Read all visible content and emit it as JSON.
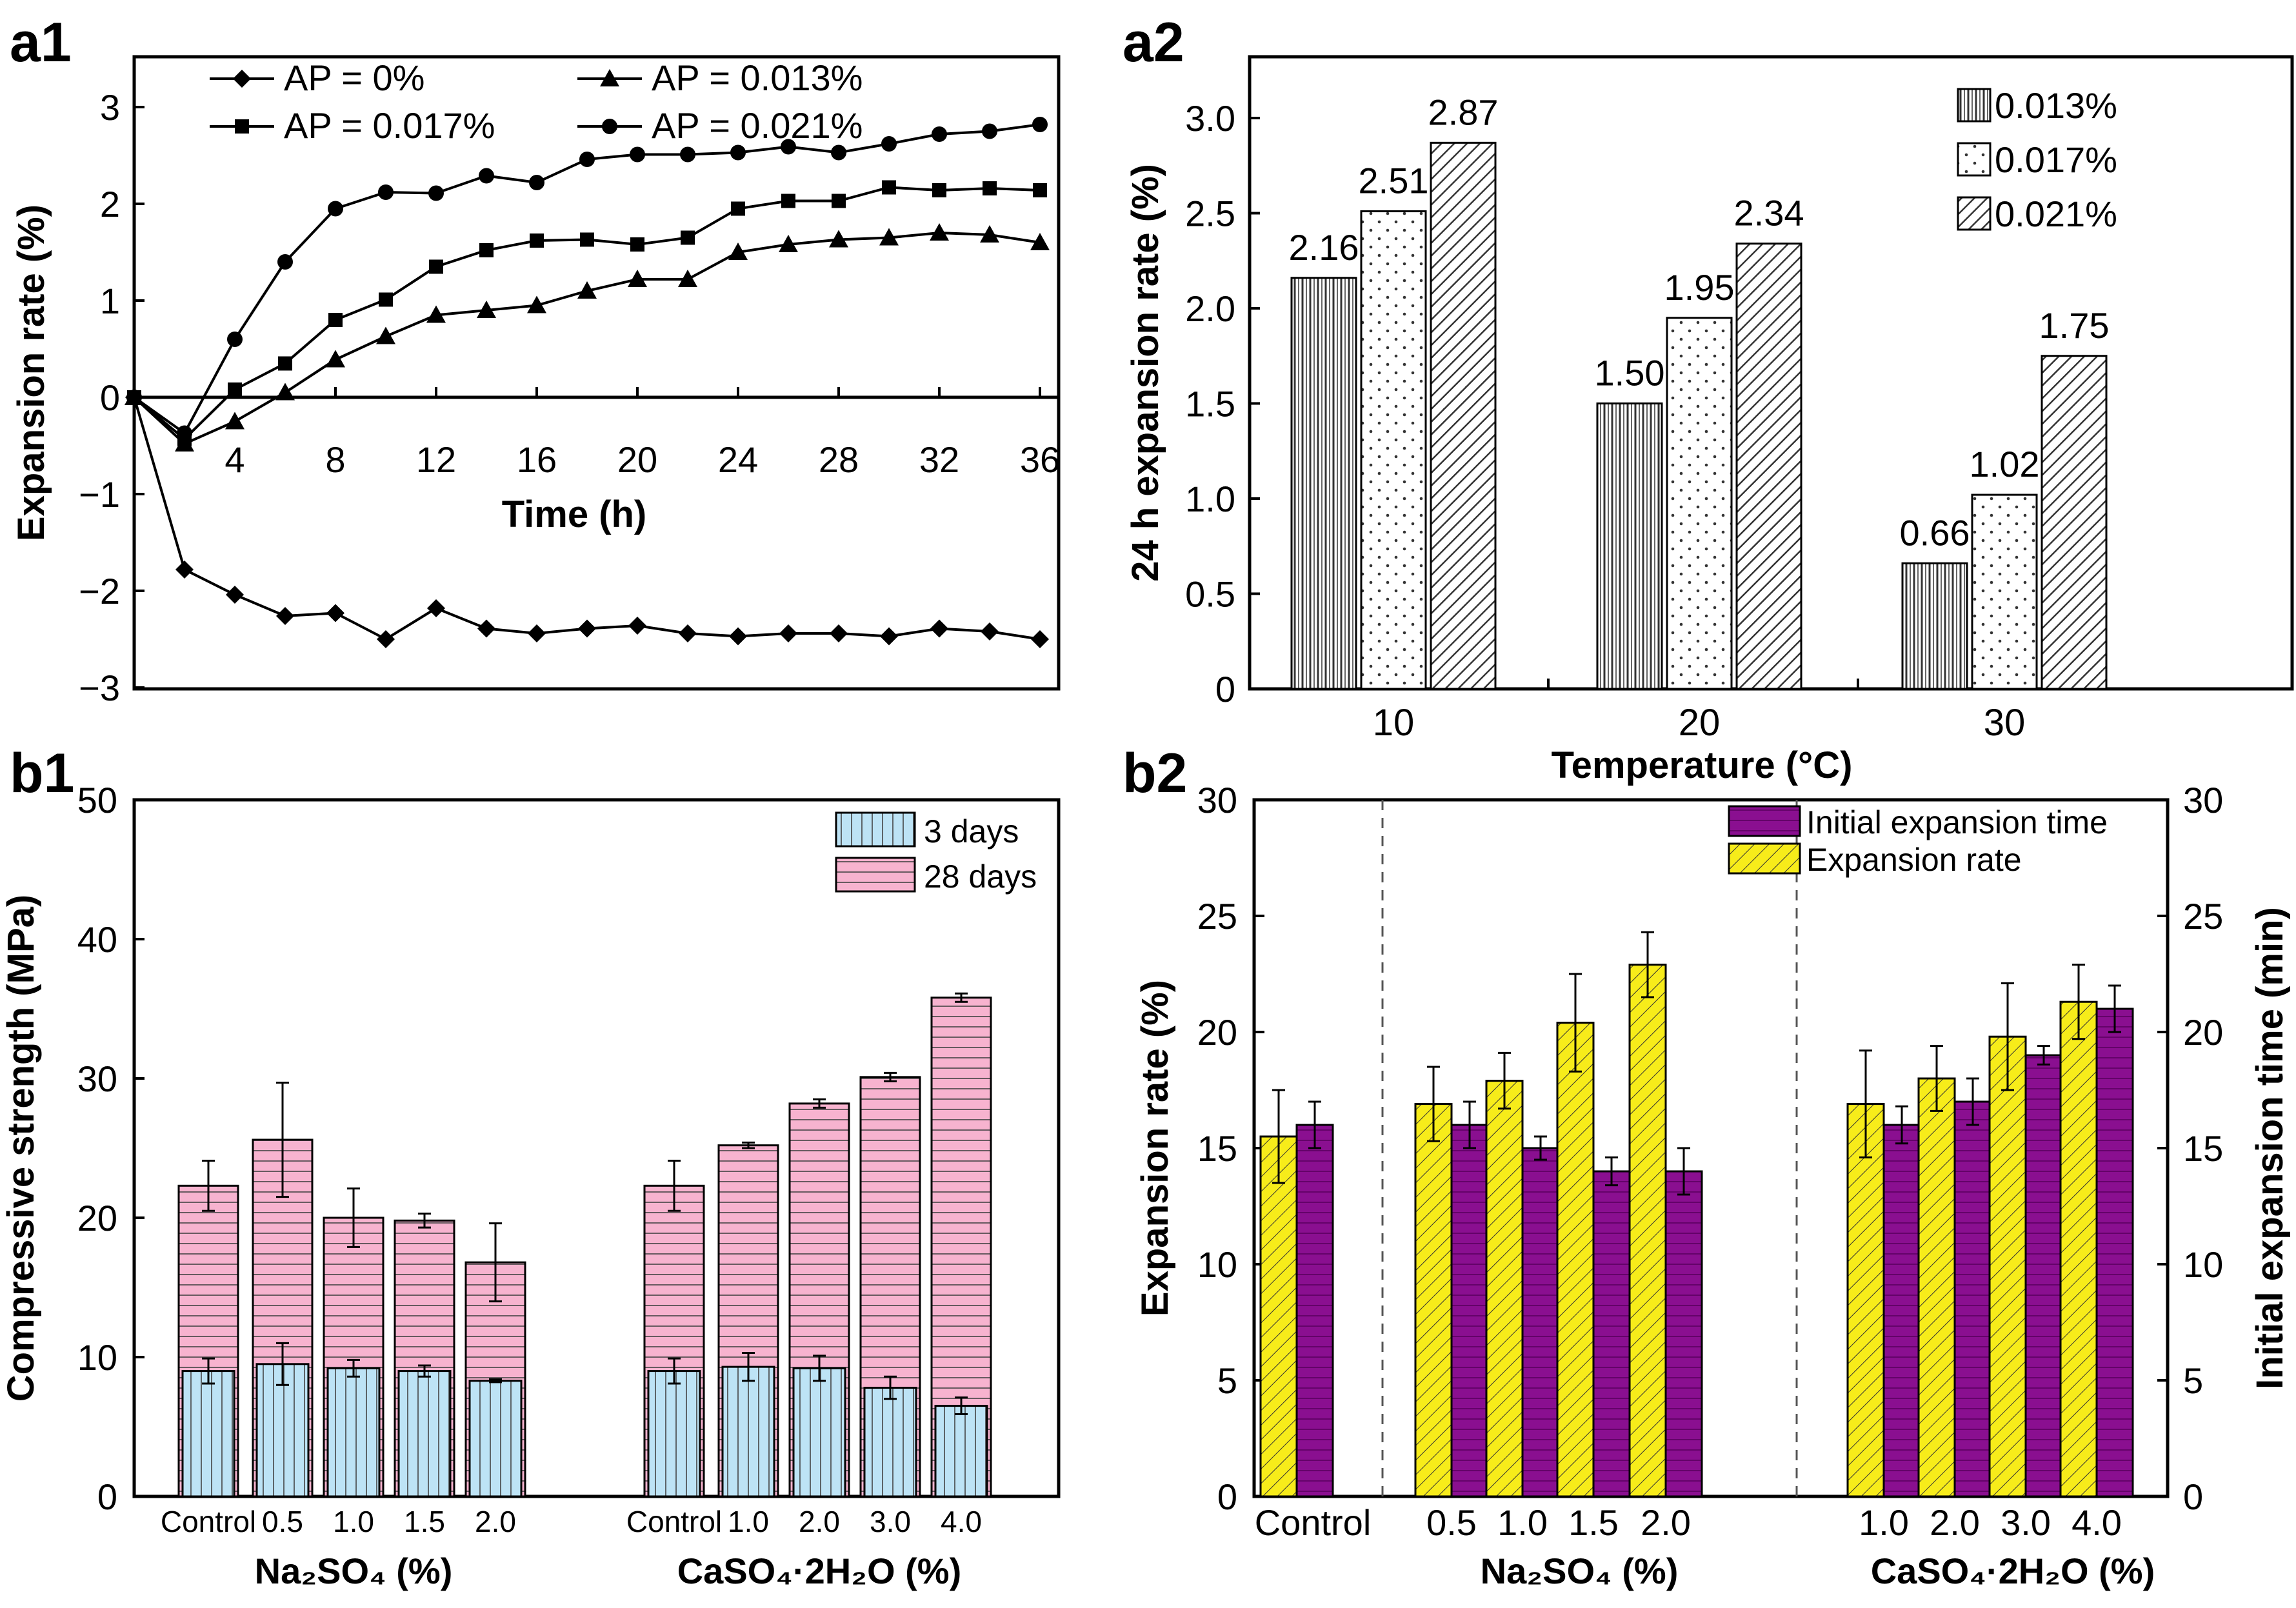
{
  "panel_labels": {
    "a1": "a1",
    "a2": "a2",
    "b1": "b1",
    "b2": "b2"
  },
  "colors": {
    "axis": "#000000",
    "b1_3days": "#bde3f5",
    "b1_28days": "#f7b3cf",
    "b2_expansion_rate": "#f7ec1a",
    "b2_initial_time": "#8a0f90"
  },
  "chart_data": [
    {
      "id": "a1",
      "type": "line",
      "xlabel": "Time (h)",
      "ylabel": "Expansion rate (%)",
      "xlim": [
        0,
        37
      ],
      "ylim": [
        -3,
        3.5
      ],
      "xticks": [
        "4",
        "8",
        "12",
        "16",
        "20",
        "24",
        "28",
        "32",
        "36"
      ],
      "yticks": [
        "−3",
        "−2",
        "−1",
        "0",
        "1",
        "2",
        "3"
      ],
      "legend_position": "top",
      "series": [
        {
          "name": "AP = 0%",
          "marker": "diamond",
          "x": [
            0,
            2,
            4,
            6,
            8,
            10,
            12,
            14,
            16,
            18,
            20,
            22,
            24,
            26,
            28,
            30,
            32,
            34,
            36
          ],
          "y": [
            0,
            -1.78,
            -2.04,
            -2.26,
            -2.23,
            -2.5,
            -2.18,
            -2.39,
            -2.44,
            -2.39,
            -2.36,
            -2.44,
            -2.47,
            -2.44,
            -2.44,
            -2.47,
            -2.39,
            -2.42,
            -2.5
          ]
        },
        {
          "name": "AP = 0.013%",
          "marker": "triangle",
          "x": [
            0,
            2,
            4,
            6,
            8,
            10,
            12,
            14,
            16,
            18,
            20,
            22,
            24,
            26,
            28,
            30,
            32,
            34,
            36
          ],
          "y": [
            0,
            -0.48,
            -0.25,
            0.05,
            0.39,
            0.63,
            0.85,
            0.9,
            0.95,
            1.1,
            1.22,
            1.22,
            1.5,
            1.58,
            1.63,
            1.65,
            1.7,
            1.68,
            1.6
          ]
        },
        {
          "name": "AP = 0.017%",
          "marker": "square",
          "x": [
            0,
            2,
            4,
            6,
            8,
            10,
            12,
            14,
            16,
            18,
            20,
            22,
            24,
            26,
            28,
            30,
            32,
            34,
            36
          ],
          "y": [
            0,
            -0.43,
            0.08,
            0.35,
            0.8,
            1.01,
            1.35,
            1.52,
            1.62,
            1.63,
            1.58,
            1.65,
            1.95,
            2.03,
            2.03,
            2.17,
            2.14,
            2.16,
            2.14
          ]
        },
        {
          "name": "AP = 0.021%",
          "marker": "circle",
          "x": [
            0,
            2,
            4,
            6,
            8,
            10,
            12,
            14,
            16,
            18,
            20,
            22,
            24,
            26,
            28,
            30,
            32,
            34,
            36
          ],
          "y": [
            0,
            -0.37,
            0.6,
            1.4,
            1.95,
            2.12,
            2.11,
            2.29,
            2.22,
            2.46,
            2.51,
            2.51,
            2.53,
            2.59,
            2.53,
            2.62,
            2.72,
            2.75,
            2.82
          ]
        }
      ]
    },
    {
      "id": "a2",
      "type": "bar",
      "xlabel": "Temperature (°C)",
      "ylabel": "24 h expansion rate (%)",
      "ylim": [
        0,
        3.3
      ],
      "yticks": [
        "0",
        "0.5",
        "1.0",
        "1.5",
        "2.0",
        "2.5",
        "3.0"
      ],
      "categories": [
        "10",
        "20",
        "30"
      ],
      "legend_position": "top-right",
      "series": [
        {
          "name": "0.013%",
          "pattern": "vertical",
          "values": [
            2.16,
            1.5,
            0.66
          ],
          "labels": [
            "2.16",
            "1.50",
            "0.66"
          ]
        },
        {
          "name": "0.017%",
          "pattern": "dots",
          "values": [
            2.51,
            1.95,
            1.02
          ],
          "labels": [
            "2.51",
            "1.95",
            "1.02"
          ]
        },
        {
          "name": "0.021%",
          "pattern": "diagonal",
          "values": [
            2.87,
            2.34,
            1.75
          ],
          "labels": [
            "2.87",
            "2.34",
            "1.75"
          ]
        }
      ]
    },
    {
      "id": "b1",
      "type": "bar",
      "ylabel": "Compressive strength (MPa)",
      "ylim": [
        0,
        50
      ],
      "yticks": [
        "0",
        "10",
        "20",
        "30",
        "40",
        "50"
      ],
      "groups": [
        {
          "label": "Na₂SO₄ (%)",
          "categories": [
            "Control",
            "0.5",
            "1.0",
            "1.5",
            "2.0"
          ]
        },
        {
          "label": "CaSO₄·2H₂O (%)",
          "categories": [
            "Control",
            "1.0",
            "2.0",
            "3.0",
            "4.0"
          ]
        }
      ],
      "legend_position": "top-right",
      "series": [
        {
          "name": "3 days",
          "values": [
            9.0,
            9.5,
            9.2,
            9.0,
            8.3,
            9.0,
            9.3,
            9.2,
            7.8,
            6.5
          ],
          "errors": [
            0.9,
            1.5,
            0.6,
            0.4,
            0.1,
            0.9,
            1.0,
            0.9,
            0.8,
            0.6
          ]
        },
        {
          "name": "28 days",
          "values": [
            22.3,
            25.6,
            20.0,
            19.8,
            16.8,
            22.3,
            25.2,
            28.2,
            30.1,
            35.8
          ],
          "errors": [
            1.8,
            4.1,
            2.1,
            0.5,
            2.8,
            1.8,
            0.2,
            0.3,
            0.3,
            0.3
          ]
        }
      ]
    },
    {
      "id": "b2",
      "type": "bar",
      "ylabel": "Expansion rate (%)",
      "ylabel_right": "Initial expansion time (min)",
      "ylim": [
        0,
        30
      ],
      "ylim_right": [
        0,
        30
      ],
      "yticks": [
        "0",
        "5",
        "10",
        "15",
        "20",
        "25",
        "30"
      ],
      "groups": [
        {
          "label": "",
          "categories": [
            "Control"
          ]
        },
        {
          "label": "Na₂SO₄ (%)",
          "categories": [
            "0.5",
            "1.0",
            "1.5",
            "2.0"
          ]
        },
        {
          "label": "CaSO₄·2H₂O (%)",
          "categories": [
            "1.0",
            "2.0",
            "3.0",
            "4.0"
          ]
        }
      ],
      "legend_position": "top-right",
      "series": [
        {
          "name": "Expansion rate",
          "axis": "left",
          "values": [
            15.5,
            16.9,
            17.9,
            20.4,
            22.9,
            16.9,
            18.0,
            19.8,
            21.3
          ],
          "errors": [
            2.0,
            1.6,
            1.2,
            2.1,
            1.4,
            2.3,
            1.4,
            2.3,
            1.6
          ]
        },
        {
          "name": "Initial expansion time",
          "axis": "right",
          "values": [
            16.0,
            16.0,
            15.0,
            14.0,
            14.0,
            16.0,
            17.0,
            19.0,
            21.0
          ],
          "errors": [
            1.0,
            1.0,
            0.5,
            0.6,
            1.0,
            0.8,
            1.0,
            0.4,
            1.0
          ]
        }
      ]
    }
  ]
}
